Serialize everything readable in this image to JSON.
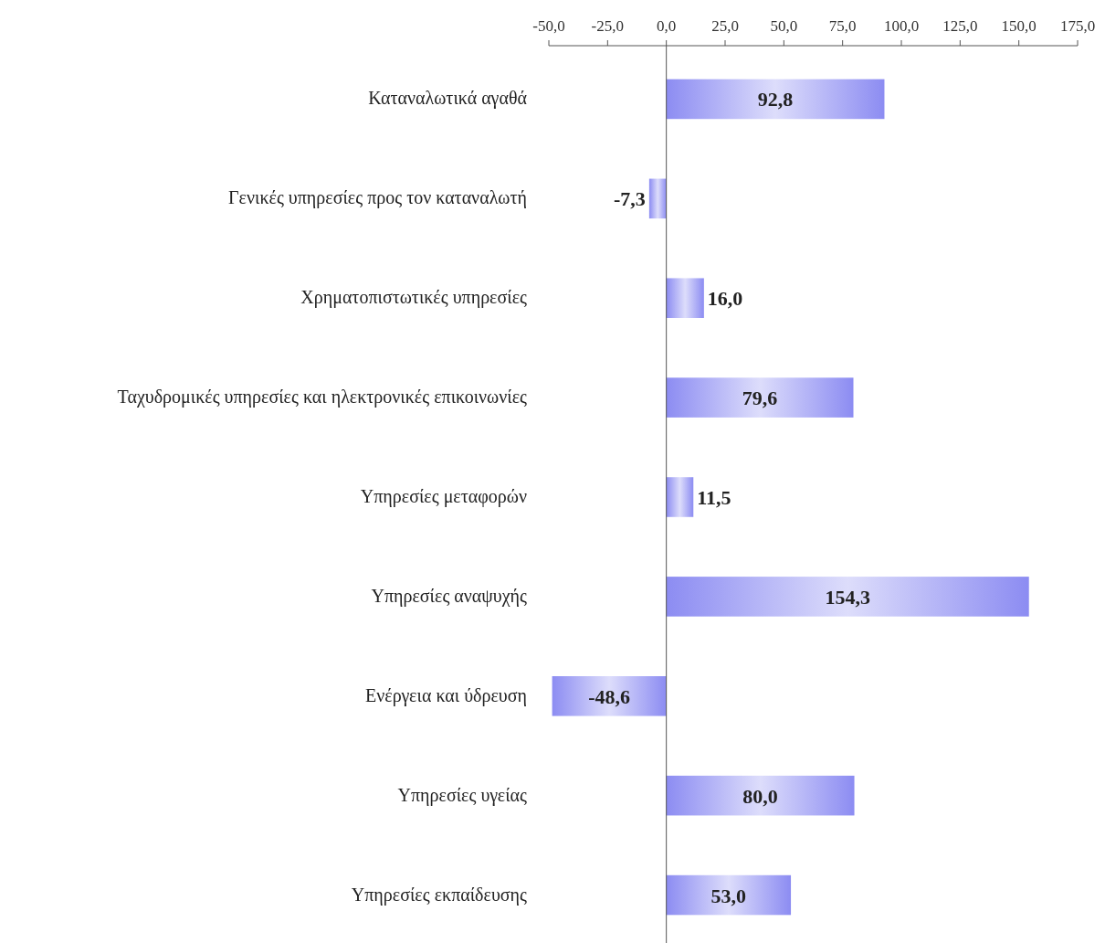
{
  "chart_data": {
    "type": "bar",
    "orientation": "horizontal",
    "categories": [
      "Καταναλωτικά αγαθά",
      "Γενικές υπηρεσίες προς τον καταναλωτή",
      "Χρηματοπιστωτικές υπηρεσίες",
      "Ταχυδρομικές υπηρεσίες και ηλεκτρονικές επικοινωνίες",
      "Υπηρεσίες μεταφορών",
      "Υπηρεσίες αναψυχής",
      "Ενέργεια και ύδρευση",
      "Υπηρεσίες υγείας",
      "Υπηρεσίες εκπαίδευσης"
    ],
    "values": [
      92.8,
      -7.3,
      16.0,
      79.6,
      11.5,
      154.3,
      -48.6,
      80.0,
      53.0
    ],
    "value_labels": [
      "92,8",
      "-7,3",
      "16,0",
      "79,6",
      "11,5",
      "154,3",
      "-48,6",
      "80,0",
      "53,0"
    ],
    "color": "#8c8cf2",
    "xlim": [
      -50,
      175
    ],
    "xticks": [
      {
        "value": -50,
        "label": "-50,0"
      },
      {
        "value": -25,
        "label": "-25,0"
      },
      {
        "value": 0,
        "label": "0,0"
      },
      {
        "value": 25,
        "label": "25,0"
      },
      {
        "value": 50,
        "label": "50,0"
      },
      {
        "value": 75,
        "label": "75,0"
      },
      {
        "value": 100,
        "label": "100,0"
      },
      {
        "value": 125,
        "label": "125,0"
      },
      {
        "value": 150,
        "label": "150,0"
      },
      {
        "value": 175,
        "label": "175,0"
      }
    ],
    "tick_labels": "x"
  }
}
